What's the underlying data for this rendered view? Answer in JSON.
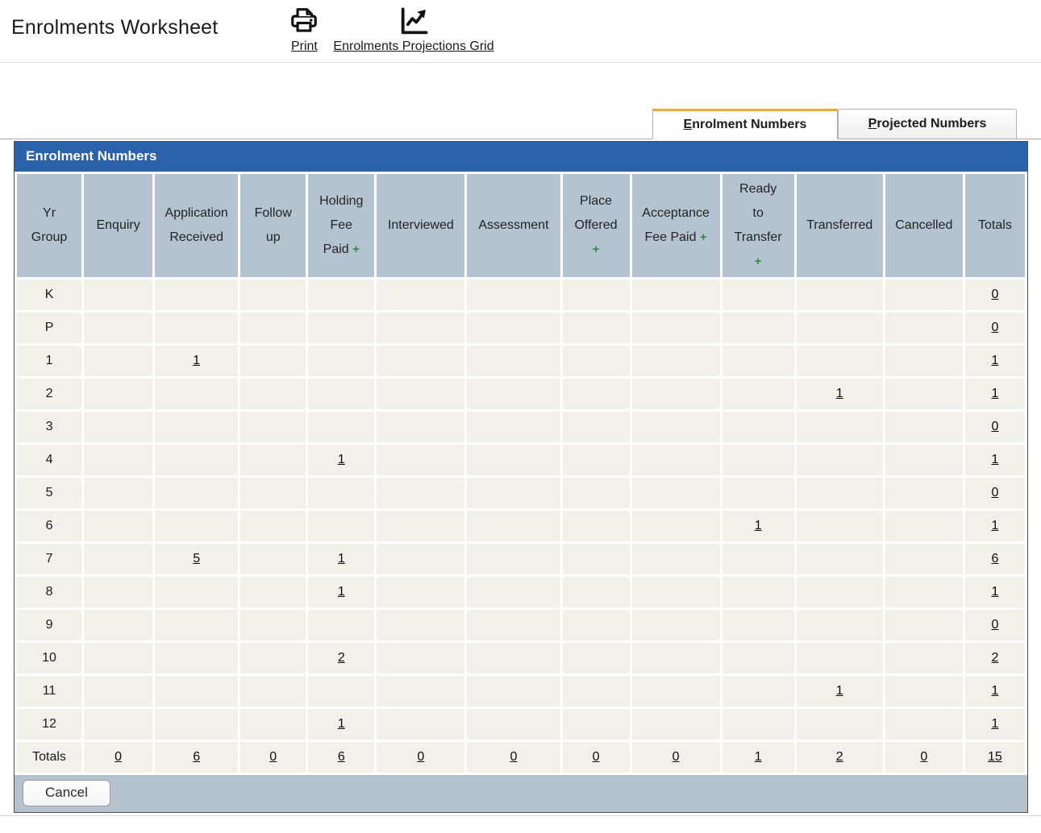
{
  "header": {
    "title": "Enrolments Worksheet",
    "actions": [
      {
        "label": "Print",
        "icon": "printer-icon"
      },
      {
        "label": "Enrolments Projections Grid",
        "icon": "projections-grid-icon"
      }
    ]
  },
  "tabs": [
    {
      "label": "Enrolment Numbers",
      "active": true
    },
    {
      "label": "Projected Numbers",
      "active": false
    }
  ],
  "panel": {
    "title": "Enrolment Numbers"
  },
  "table": {
    "columns": [
      {
        "label": "Yr\nGroup"
      },
      {
        "label": "Enquiry"
      },
      {
        "label": "Application\nReceived"
      },
      {
        "label": "Follow\nup"
      },
      {
        "label": "Holding\nFee\nPaid",
        "plus": "inline"
      },
      {
        "label": "Interviewed"
      },
      {
        "label": "Assessment"
      },
      {
        "label": "Place\nOffered",
        "plus": "newline"
      },
      {
        "label": "Acceptance\nFee Paid",
        "plus": "inline"
      },
      {
        "label": "Ready\nto\nTransfer",
        "plus": "newline"
      },
      {
        "label": "Transferred"
      },
      {
        "label": "Cancelled"
      },
      {
        "label": "Totals"
      }
    ],
    "rows": [
      {
        "group": "K",
        "values": [
          "",
          "",
          "",
          "",
          "",
          "",
          "",
          "",
          "",
          "",
          ""
        ],
        "total": "0"
      },
      {
        "group": "P",
        "values": [
          "",
          "",
          "",
          "",
          "",
          "",
          "",
          "",
          "",
          "",
          ""
        ],
        "total": "0"
      },
      {
        "group": "1",
        "values": [
          "",
          "1",
          "",
          "",
          "",
          "",
          "",
          "",
          "",
          "",
          ""
        ],
        "total": "1"
      },
      {
        "group": "2",
        "values": [
          "",
          "",
          "",
          "",
          "",
          "",
          "",
          "",
          "",
          "1",
          ""
        ],
        "total": "1"
      },
      {
        "group": "3",
        "values": [
          "",
          "",
          "",
          "",
          "",
          "",
          "",
          "",
          "",
          "",
          ""
        ],
        "total": "0"
      },
      {
        "group": "4",
        "values": [
          "",
          "",
          "",
          "1",
          "",
          "",
          "",
          "",
          "",
          "",
          ""
        ],
        "total": "1"
      },
      {
        "group": "5",
        "values": [
          "",
          "",
          "",
          "",
          "",
          "",
          "",
          "",
          "",
          "",
          ""
        ],
        "total": "0"
      },
      {
        "group": "6",
        "values": [
          "",
          "",
          "",
          "",
          "",
          "",
          "",
          "",
          "1",
          "",
          ""
        ],
        "total": "1"
      },
      {
        "group": "7",
        "values": [
          "",
          "5",
          "",
          "1",
          "",
          "",
          "",
          "",
          "",
          "",
          ""
        ],
        "total": "6"
      },
      {
        "group": "8",
        "values": [
          "",
          "",
          "",
          "1",
          "",
          "",
          "",
          "",
          "",
          "",
          ""
        ],
        "total": "1"
      },
      {
        "group": "9",
        "values": [
          "",
          "",
          "",
          "",
          "",
          "",
          "",
          "",
          "",
          "",
          ""
        ],
        "total": "0"
      },
      {
        "group": "10",
        "values": [
          "",
          "",
          "",
          "2",
          "",
          "",
          "",
          "",
          "",
          "",
          ""
        ],
        "total": "2"
      },
      {
        "group": "11",
        "values": [
          "",
          "",
          "",
          "",
          "",
          "",
          "",
          "",
          "",
          "1",
          ""
        ],
        "total": "1"
      },
      {
        "group": "12",
        "values": [
          "",
          "",
          "",
          "1",
          "",
          "",
          "",
          "",
          "",
          "",
          ""
        ],
        "total": "1"
      }
    ],
    "totals_row": {
      "label": "Totals",
      "values": [
        "0",
        "6",
        "0",
        "6",
        "0",
        "0",
        "0",
        "0",
        "1",
        "2",
        "0"
      ],
      "total": "15"
    }
  },
  "footer": {
    "cancel_label": "Cancel"
  },
  "colors": {
    "tab_accent_orange": "#F2A72E",
    "panel_header_blue": "#2A61A8",
    "grid_header_gray": "#B5C2D0",
    "grid_cell_cream": "#F2F0E9",
    "plus_green": "#2E8B40"
  },
  "icons": {
    "plus_glyph": "+"
  }
}
